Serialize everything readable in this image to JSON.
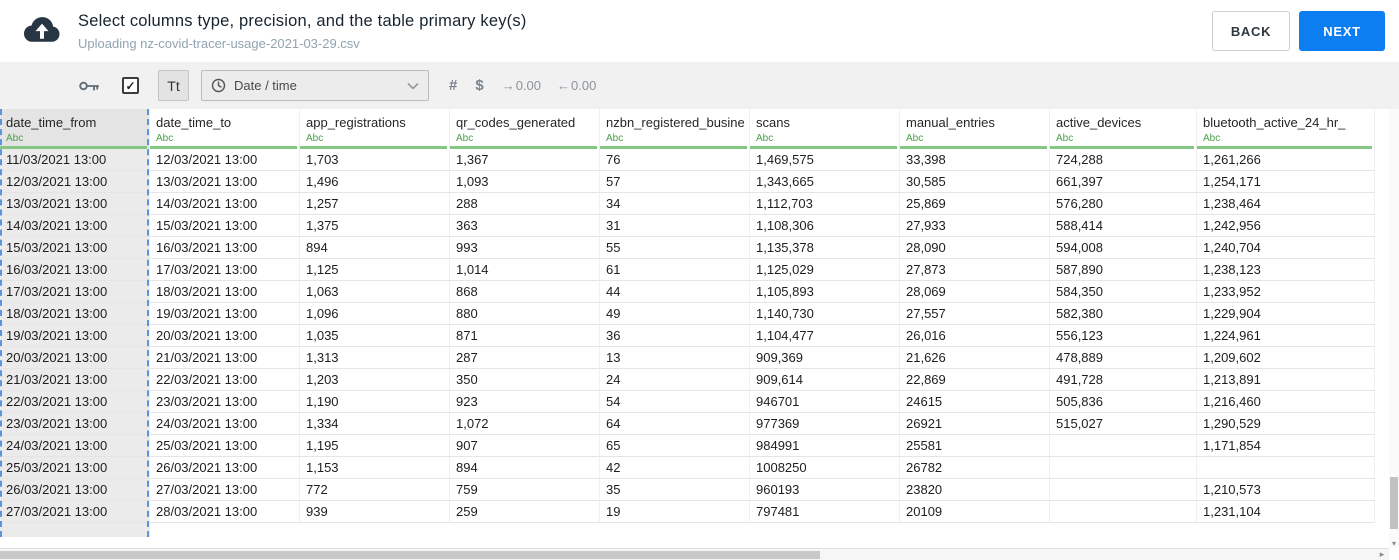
{
  "header": {
    "title": "Select columns type, precision, and the table primary key(s)",
    "subtitle": "Uploading nz-covid-tracer-usage-2021-03-29.csv",
    "back_label": "BACK",
    "next_label": "NEXT"
  },
  "toolbar": {
    "checkbox_checked": true,
    "check_glyph": "✓",
    "text_type_label": "Tt",
    "type_select_value": "Date / time",
    "number_symbol": "#",
    "currency_symbol": "$",
    "precision_add_arrow": "→",
    "precision_add_label": "0.00",
    "precision_remove_arrow": "←",
    "precision_remove_label": "0.00"
  },
  "table": {
    "columns": [
      {
        "name": "date_time_from",
        "type": "Abc",
        "selected": true
      },
      {
        "name": "date_time_to",
        "type": "Abc",
        "selected": false
      },
      {
        "name": "app_registrations",
        "type": "Abc",
        "selected": false
      },
      {
        "name": "qr_codes_generated",
        "type": "Abc",
        "selected": false
      },
      {
        "name": "nzbn_registered_busine",
        "type": "Abc",
        "selected": false
      },
      {
        "name": "scans",
        "type": "Abc",
        "selected": false
      },
      {
        "name": "manual_entries",
        "type": "Abc",
        "selected": false
      },
      {
        "name": "active_devices",
        "type": "Abc",
        "selected": false
      },
      {
        "name": "bluetooth_active_24_hr_",
        "type": "Abc",
        "selected": false
      }
    ],
    "rows": [
      [
        "11/03/2021 13:00",
        "12/03/2021 13:00",
        "1,703",
        "1,367",
        "76",
        "1,469,575",
        "33,398",
        "724,288",
        "1,261,266"
      ],
      [
        "12/03/2021 13:00",
        "13/03/2021 13:00",
        "1,496",
        "1,093",
        "57",
        "1,343,665",
        "30,585",
        "661,397",
        "1,254,171"
      ],
      [
        "13/03/2021 13:00",
        "14/03/2021 13:00",
        "1,257",
        "288",
        "34",
        "1,112,703",
        "25,869",
        "576,280",
        "1,238,464"
      ],
      [
        "14/03/2021 13:00",
        "15/03/2021 13:00",
        "1,375",
        "363",
        "31",
        "1,108,306",
        "27,933",
        "588,414",
        "1,242,956"
      ],
      [
        "15/03/2021 13:00",
        "16/03/2021 13:00",
        "894",
        "993",
        "55",
        "1,135,378",
        "28,090",
        "594,008",
        "1,240,704"
      ],
      [
        "16/03/2021 13:00",
        "17/03/2021 13:00",
        "1,125",
        "1,014",
        "61",
        "1,125,029",
        "27,873",
        "587,890",
        "1,238,123"
      ],
      [
        "17/03/2021 13:00",
        "18/03/2021 13:00",
        "1,063",
        "868",
        "44",
        "1,105,893",
        "28,069",
        "584,350",
        "1,233,952"
      ],
      [
        "18/03/2021 13:00",
        "19/03/2021 13:00",
        "1,096",
        "880",
        "49",
        "1,140,730",
        "27,557",
        "582,380",
        "1,229,904"
      ],
      [
        "19/03/2021 13:00",
        "20/03/2021 13:00",
        "1,035",
        "871",
        "36",
        "1,104,477",
        "26,016",
        "556,123",
        "1,224,961"
      ],
      [
        "20/03/2021 13:00",
        "21/03/2021 13:00",
        "1,313",
        "287",
        "13",
        "909,369",
        "21,626",
        "478,889",
        "1,209,602"
      ],
      [
        "21/03/2021 13:00",
        "22/03/2021 13:00",
        "1,203",
        "350",
        "24",
        "909,614",
        "22,869",
        "491,728",
        "1,213,891"
      ],
      [
        "22/03/2021 13:00",
        "23/03/2021 13:00",
        "1,190",
        "923",
        "54",
        "946701",
        "24615",
        "505,836",
        "1,216,460"
      ],
      [
        "23/03/2021 13:00",
        "24/03/2021 13:00",
        "1,334",
        "1,072",
        "64",
        "977369",
        "26921",
        "515,027",
        "1,290,529"
      ],
      [
        "24/03/2021 13:00",
        "25/03/2021 13:00",
        "1,195",
        "907",
        "65",
        "984991",
        "25581",
        "",
        "1,171,854"
      ],
      [
        "25/03/2021 13:00",
        "26/03/2021 13:00",
        "1,153",
        "894",
        "42",
        "1008250",
        "26782",
        "",
        ""
      ],
      [
        "26/03/2021 13:00",
        "27/03/2021 13:00",
        "772",
        "759",
        "35",
        "960193",
        "23820",
        "",
        "1,210,573"
      ],
      [
        "27/03/2021 13:00",
        "28/03/2021 13:00",
        "939",
        "259",
        "19",
        "797481",
        "20109",
        "",
        "1,231,104"
      ]
    ]
  },
  "scrollbars": {
    "right_arrow": "▸",
    "down_arrow": "▾"
  },
  "icons": {
    "upload": "cloud-upload-icon",
    "key": "key-icon",
    "clock": "clock-icon",
    "chevron": "chevron-down-icon"
  },
  "colors": {
    "accent_blue": "#0d7df2",
    "selection_dash_blue": "#5a95dd",
    "header_underline_green": "#84c784",
    "type_label_green": "#4a9e4a",
    "selected_column_bg": "#ebebeb",
    "toolbar_bg": "#f1f1f1"
  }
}
